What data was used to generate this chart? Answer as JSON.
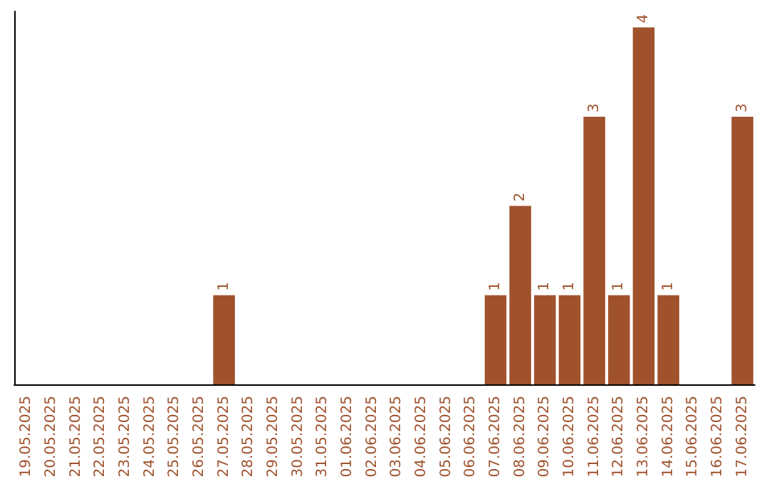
{
  "chart_data": {
    "type": "bar",
    "categories": [
      "19.05.2025",
      "20.05.2025",
      "21.05.2025",
      "22.05.2025",
      "23.05.2025",
      "24.05.2025",
      "25.05.2025",
      "26.05.2025",
      "27.05.2025",
      "28.05.2025",
      "29.05.2025",
      "30.05.2025",
      "31.05.2025",
      "01.06.2025",
      "02.06.2025",
      "03.06.2025",
      "04.06.2025",
      "05.06.2025",
      "06.06.2025",
      "07.06.2025",
      "08.06.2025",
      "09.06.2025",
      "10.06.2025",
      "11.06.2025",
      "12.06.2025",
      "13.06.2025",
      "14.06.2025",
      "15.06.2025",
      "16.06.2025",
      "17.06.2025"
    ],
    "values": [
      0,
      0,
      0,
      0,
      0,
      0,
      0,
      0,
      1,
      0,
      0,
      0,
      0,
      0,
      0,
      0,
      0,
      0,
      0,
      1,
      2,
      1,
      1,
      3,
      1,
      4,
      1,
      0,
      0,
      3
    ],
    "value_labels": [
      null,
      null,
      null,
      null,
      null,
      null,
      null,
      null,
      "1",
      null,
      null,
      null,
      null,
      null,
      null,
      null,
      null,
      null,
      null,
      "1",
      "2",
      "1",
      "1",
      "3",
      "1",
      "4",
      "1",
      null,
      null,
      "3"
    ],
    "color": "#a0522d",
    "tick_labels": "x"
  }
}
